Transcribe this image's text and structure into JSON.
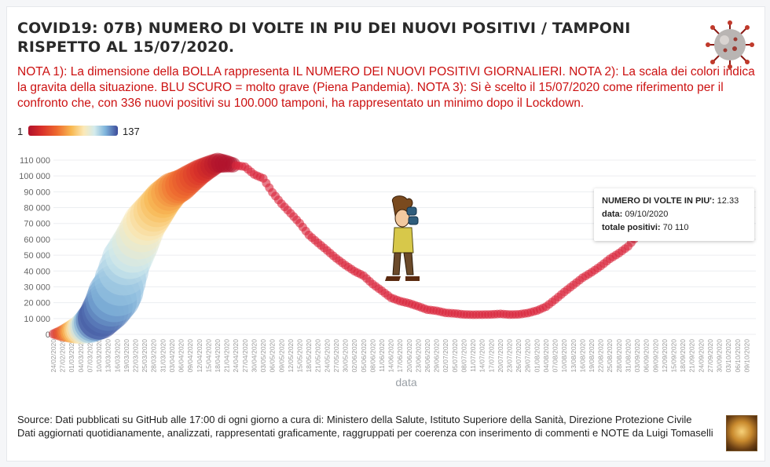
{
  "title": "COVID19: 07B) NUMERO DI VOLTE IN PIU DEI NUOVI POSITIVI / TAMPONI RISPETTO AL 15/07/2020.",
  "note": "NOTA 1): La dimensione della BOLLA rappresenta IL NUMERO DEI NUOVI POSITIVI GIORNALIERI. NOTA 2): La scala dei colori indica la gravita della situazione. BLU SCURO = molto grave (Piena Pandemia). NOTA 3): Si è scelto il 15/07/2020 come riferimento per il confronto che, con 336 nuovi positivi su 100.000 tamponi, ha rappresentato un minimo dopo il Lockdown.",
  "legend": {
    "min": "1",
    "max": "137"
  },
  "colors": {
    "title": "#2a2a2a",
    "note": "#cc1111",
    "bubble_main": "#d8243a"
  },
  "icons": {
    "virus": "coronavirus-icon",
    "character": "binoculars-boy-icon",
    "logo": "author-logo-icon"
  },
  "tooltip": {
    "label_times": "NUMERO DI VOLTE IN PIU':",
    "value_times": "12.33",
    "label_date": "data:",
    "value_date": "09/10/2020",
    "label_total": "totale positivi:",
    "value_total": "70 110"
  },
  "footer": {
    "line1": "Source: Dati pubblicati su GitHub alle 17:00 di ogni giorno a cura di: Ministero della Salute, Istituto Superiore della Sanità, Direzione Protezione Civile",
    "line2": "Dati aggiornati quotidianamente, analizzati, rappresentati graficamente, raggruppati per coerenza con inserimento di commenti e NOTE da Luigi Tomaselli"
  },
  "chart_data": {
    "type": "scatter",
    "xlabel": "data",
    "ylabel": "",
    "ylim": [
      0,
      110000
    ],
    "yticks": [
      0,
      10000,
      20000,
      30000,
      40000,
      50000,
      60000,
      70000,
      80000,
      90000,
      100000,
      110000
    ],
    "ytick_labels": [
      "0",
      "10 000",
      "20 000",
      "30 000",
      "40 000",
      "50 000",
      "60 000",
      "70 000",
      "80 000",
      "90 000",
      "100 000",
      "110 000"
    ],
    "xticks": [
      "24/02/2020",
      "27/02/2020",
      "01/03/2020",
      "04/03/2020",
      "07/03/2020",
      "10/03/2020",
      "13/03/2020",
      "16/03/2020",
      "19/03/2020",
      "22/03/2020",
      "25/03/2020",
      "28/03/2020",
      "31/03/2020",
      "03/04/2020",
      "06/04/2020",
      "09/04/2020",
      "12/04/2020",
      "15/04/2020",
      "18/04/2020",
      "21/04/2020",
      "24/04/2020",
      "27/04/2020",
      "30/04/2020",
      "03/05/2020",
      "06/05/2020",
      "09/05/2020",
      "12/05/2020",
      "15/05/2020",
      "18/05/2020",
      "21/05/2020",
      "24/05/2020",
      "27/05/2020",
      "30/05/2020",
      "02/06/2020",
      "05/06/2020",
      "08/06/2020",
      "11/06/2020",
      "14/06/2020",
      "17/06/2020",
      "20/06/2020",
      "23/06/2020",
      "26/06/2020",
      "29/06/2020",
      "02/07/2020",
      "05/07/2020",
      "08/07/2020",
      "11/07/2020",
      "14/07/2020",
      "17/07/2020",
      "20/07/2020",
      "23/07/2020",
      "26/07/2020",
      "29/07/2020",
      "01/08/2020",
      "04/08/2020",
      "07/08/2020",
      "10/08/2020",
      "13/08/2020",
      "16/08/2020",
      "19/08/2020",
      "22/08/2020",
      "25/08/2020",
      "28/08/2020",
      "31/08/2020",
      "03/09/2020",
      "06/09/2020",
      "09/09/2020",
      "12/09/2020",
      "15/09/2020",
      "18/09/2020",
      "21/09/2020",
      "24/09/2020",
      "27/09/2020",
      "30/09/2020",
      "03/10/2020",
      "06/10/2020",
      "09/10/2020"
    ],
    "x_start": "24/02/2020",
    "x_end": "12/10/2020",
    "series_points": [
      [
        0,
        229
      ],
      [
        3,
        650
      ],
      [
        6,
        1694
      ],
      [
        9,
        3089
      ],
      [
        12,
        5883
      ],
      [
        15,
        10149
      ],
      [
        18,
        17660
      ],
      [
        21,
        27980
      ],
      [
        24,
        46638
      ],
      [
        27,
        57521
      ],
      [
        30,
        70065
      ],
      [
        33,
        77635
      ],
      [
        36,
        85388
      ],
      [
        39,
        91246
      ],
      [
        42,
        94067
      ],
      [
        45,
        98273
      ],
      [
        48,
        102253
      ],
      [
        51,
        105418
      ],
      [
        54,
        108257
      ],
      [
        57,
        107709
      ],
      [
        60,
        106607
      ],
      [
        63,
        105813
      ],
      [
        66,
        100943
      ],
      [
        69,
        98467
      ],
      [
        72,
        89624
      ],
      [
        75,
        82488
      ],
      [
        78,
        76440
      ],
      [
        81,
        70187
      ],
      [
        84,
        62752
      ],
      [
        87,
        57752
      ],
      [
        90,
        52942
      ],
      [
        93,
        47986
      ],
      [
        96,
        43691
      ],
      [
        99,
        39893
      ],
      [
        102,
        36976
      ],
      [
        105,
        31710
      ],
      [
        108,
        27485
      ],
      [
        111,
        23101
      ],
      [
        114,
        20972
      ],
      [
        117,
        19573
      ],
      [
        120,
        17638
      ],
      [
        123,
        15563
      ],
      [
        126,
        14884
      ],
      [
        129,
        13595
      ],
      [
        132,
        13179
      ],
      [
        135,
        12581
      ],
      [
        138,
        12404
      ],
      [
        141,
        12456
      ],
      [
        144,
        12565
      ],
      [
        147,
        12924
      ],
      [
        150,
        12482
      ],
      [
        153,
        12616
      ],
      [
        156,
        13457
      ],
      [
        159,
        14981
      ],
      [
        162,
        17503
      ],
      [
        165,
        21932
      ],
      [
        168,
        26754
      ],
      [
        171,
        31194
      ],
      [
        174,
        35708
      ],
      [
        177,
        39187
      ],
      [
        180,
        43161
      ],
      [
        183,
        47718
      ],
      [
        186,
        51263
      ],
      [
        189,
        55566
      ],
      [
        191,
        60134
      ],
      [
        193,
        66314
      ],
      [
        196,
        70110
      ]
    ],
    "color_scale": {
      "min": 1,
      "max": 137
    }
  }
}
